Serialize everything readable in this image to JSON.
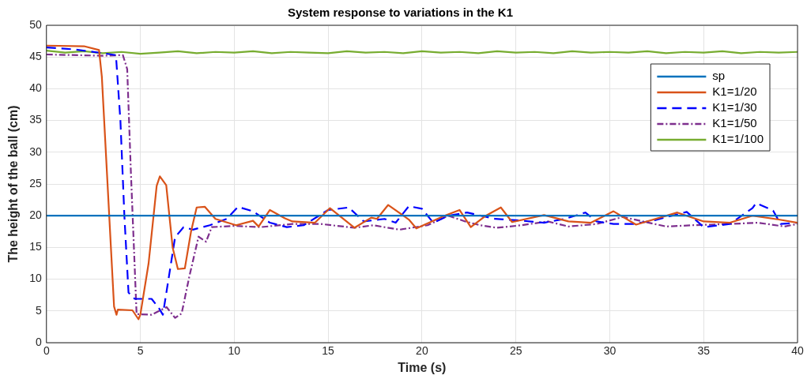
{
  "chart_data": {
    "type": "line",
    "title": "System response to variations in the K1",
    "xlabel": "Time (s)",
    "ylabel": "The height of the ball (cm)",
    "xlim": [
      0,
      40
    ],
    "xticks": [
      0,
      5,
      10,
      15,
      20,
      25,
      30,
      35,
      40
    ],
    "ylim": [
      0,
      50
    ],
    "yticks": [
      0,
      5,
      10,
      15,
      20,
      25,
      30,
      35,
      40,
      45,
      50
    ],
    "grid": true,
    "legend": "top right",
    "marker": "none",
    "series": [
      {
        "name": "sp",
        "color": "#0072bd",
        "line_style": "solid",
        "x": [
          0,
          40
        ],
        "values": [
          20,
          20
        ]
      },
      {
        "name": "K1=1/20",
        "color": "#d95319",
        "line_style": "solid",
        "x": [
          0,
          2.0,
          2.8,
          2.95,
          3.3,
          3.6,
          3.73,
          3.8,
          4.58,
          4.9,
          5.0,
          5.44,
          5.87,
          6.04,
          6.38,
          6.72,
          7.0,
          7.37,
          7.7,
          8.0,
          8.44,
          9.0,
          10.1,
          11.0,
          11.3,
          11.9,
          12.7,
          13.1,
          14.3,
          15.1,
          16.4,
          17.3,
          17.6,
          18.2,
          19.3,
          19.7,
          21.2,
          22.0,
          22.6,
          23.4,
          24.2,
          24.8,
          26.5,
          27.8,
          29.0,
          30.2,
          31.4,
          33.6,
          35.0,
          36.4,
          37.6,
          39.0,
          40
        ],
        "values": [
          46.8,
          46.7,
          46.1,
          41.9,
          22.4,
          5.7,
          4.4,
          5.2,
          5.1,
          3.7,
          4.4,
          12.5,
          24.7,
          26.2,
          24.8,
          15.0,
          11.6,
          11.7,
          17.5,
          21.3,
          21.4,
          19.5,
          18.5,
          19.2,
          18.3,
          20.9,
          19.6,
          19.1,
          18.9,
          21.2,
          18.1,
          19.7,
          19.5,
          21.7,
          19.4,
          18.0,
          20.0,
          20.9,
          18.2,
          20.0,
          21.3,
          19.0,
          20.1,
          19.1,
          18.9,
          20.7,
          18.6,
          20.5,
          19.1,
          18.9,
          20.0,
          19.4,
          18.9
        ]
      },
      {
        "name": "K1=1/30",
        "color": "#0000ff",
        "line_style": "dashed",
        "x": [
          0,
          1.5,
          3.0,
          3.7,
          3.94,
          4.15,
          4.37,
          4.7,
          5.6,
          6.0,
          6.2,
          6.5,
          6.85,
          7.3,
          7.8,
          8.7,
          9.6,
          10.2,
          11.0,
          11.9,
          12.8,
          13.7,
          15.0,
          16.1,
          16.9,
          18.0,
          18.6,
          19.3,
          20.0,
          20.6,
          21.4,
          22.4,
          23.9,
          25.0,
          26.5,
          27.6,
          28.7,
          29.3,
          30.2,
          31.3,
          32.4,
          34.1,
          35.0,
          36.4,
          37.6,
          37.8,
          38.7,
          39.1,
          40
        ],
        "values": [
          46.5,
          46.2,
          45.6,
          45.3,
          34.9,
          20.0,
          7.9,
          6.9,
          6.9,
          5.4,
          4.4,
          10.0,
          16.6,
          18.2,
          17.8,
          18.5,
          19.5,
          21.4,
          20.7,
          18.9,
          18.2,
          18.5,
          20.9,
          21.3,
          19.1,
          19.5,
          18.9,
          21.5,
          21.1,
          18.9,
          20.0,
          20.5,
          19.5,
          19.3,
          18.9,
          19.5,
          20.5,
          19.1,
          18.7,
          18.7,
          19.3,
          20.6,
          18.2,
          18.7,
          21.2,
          22.0,
          20.8,
          18.7,
          18.9
        ]
      },
      {
        "name": "K1=1/50",
        "color": "#7e2f8e",
        "line_style": "dotted",
        "x": [
          0,
          3.0,
          4.07,
          4.3,
          4.5,
          4.67,
          4.8,
          5.6,
          6.4,
          6.85,
          7.2,
          7.6,
          8.1,
          8.5,
          8.8,
          10.0,
          11.4,
          12.8,
          13.1,
          14.6,
          16.4,
          17.4,
          18.8,
          20.3,
          21.4,
          22.3,
          23.1,
          24.0,
          25.3,
          26.7,
          27.8,
          29.3,
          30.7,
          33.0,
          34.4,
          36.4,
          37.9,
          39.3,
          40
        ],
        "values": [
          45.4,
          45.2,
          45.3,
          43.1,
          26.6,
          14.1,
          4.5,
          4.4,
          5.6,
          3.9,
          4.6,
          10.3,
          16.7,
          15.9,
          18.2,
          18.4,
          18.2,
          18.6,
          18.7,
          18.7,
          18.1,
          18.5,
          17.8,
          18.5,
          20.0,
          19.1,
          18.5,
          18.1,
          18.5,
          19.1,
          18.3,
          18.7,
          19.8,
          18.3,
          18.5,
          18.7,
          18.9,
          18.3,
          18.7
        ]
      },
      {
        "name": "K1=1/100",
        "color": "#77ac30",
        "line_style": "solid",
        "x": [
          0,
          1,
          2,
          3,
          4,
          5,
          6,
          7,
          8,
          9,
          10,
          11,
          12,
          13,
          14,
          15,
          16,
          17,
          18,
          19,
          20,
          21,
          22,
          23,
          24,
          25,
          26,
          27,
          28,
          29,
          30,
          31,
          32,
          33,
          34,
          35,
          36,
          37,
          38,
          39,
          40
        ],
        "values": [
          46.0,
          45.7,
          45.9,
          45.6,
          45.8,
          45.5,
          45.7,
          45.9,
          45.6,
          45.8,
          45.7,
          45.9,
          45.6,
          45.8,
          45.7,
          45.6,
          45.9,
          45.7,
          45.8,
          45.6,
          45.9,
          45.7,
          45.8,
          45.6,
          45.9,
          45.7,
          45.8,
          45.6,
          45.9,
          45.7,
          45.8,
          45.7,
          45.9,
          45.6,
          45.8,
          45.7,
          45.9,
          45.6,
          45.8,
          45.7,
          45.8
        ]
      }
    ]
  }
}
